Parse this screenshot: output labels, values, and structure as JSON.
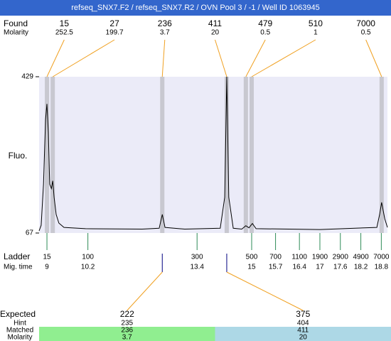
{
  "header": {
    "title": "refseq_SNX7.F2 / refseq_SNX7.R2 / OVN Pool 3 / -1 / Well ID 1063945"
  },
  "found": {
    "label": "Found",
    "molarity_label": "Molarity",
    "peaks": [
      {
        "size": 15,
        "molarity": 252.5,
        "time": 9.0
      },
      {
        "size": 27,
        "molarity": 199.7,
        "time": 9.17
      },
      {
        "size": 236,
        "molarity": 3.7,
        "time": 12.38
      },
      {
        "size": 411,
        "molarity": 20,
        "time": 14.27
      },
      {
        "size": 479,
        "molarity": 0.5,
        "time": 14.83
      },
      {
        "size": 510,
        "molarity": 1,
        "time": 15.0
      },
      {
        "size": 7000,
        "molarity": 0.5,
        "time": 18.81
      }
    ]
  },
  "chart_data": {
    "type": "line",
    "y_label": "Fluo.",
    "color": "#000000",
    "x": [
      8.77,
      8.83,
      8.9,
      8.96,
      9.0,
      9.04,
      9.08,
      9.13,
      9.17,
      9.21,
      9.27,
      9.35,
      9.5,
      10.13,
      11.79,
      12.29,
      12.38,
      12.46,
      13.04,
      14.08,
      14.21,
      14.27,
      14.33,
      14.46,
      14.71,
      14.83,
      14.92,
      15.02,
      15.13,
      17.0,
      18.67,
      18.75,
      18.81,
      18.9,
      18.98
    ],
    "values": [
      72,
      85,
      180,
      330,
      366,
      300,
      180,
      170,
      188,
      150,
      110,
      90,
      80,
      77,
      76,
      78,
      110,
      80,
      76,
      78,
      150,
      429,
      150,
      78,
      76,
      84,
      79,
      89,
      77,
      75,
      80,
      110,
      138,
      100,
      80
    ],
    "xlim": [
      8.77,
      18.98
    ],
    "ylim": [
      67,
      429
    ],
    "yticks": [
      67,
      429
    ]
  },
  "ladder": {
    "label": "Ladder",
    "time_label": "Mig. time",
    "color": "#2e8b57",
    "sizes": [
      15,
      100,
      300,
      500,
      700,
      1100,
      1900,
      2900,
      4900,
      7000
    ],
    "times": [
      9,
      10.2,
      13.4,
      15,
      15.7,
      16.4,
      17,
      17.6,
      18.2,
      18.8
    ]
  },
  "expected": {
    "label": "Expected",
    "hint_label": "Hint",
    "matched_label": "Matched",
    "molarity_label": "Molarity",
    "items": [
      {
        "expected": 222,
        "hint": 235,
        "matched": 236,
        "molarity": 3.7,
        "time": 12.38,
        "color": "#90ee90"
      },
      {
        "expected": 375,
        "hint": 404,
        "matched": 411,
        "molarity": 20,
        "time": 14.27,
        "color": "#add8e6"
      }
    ]
  }
}
